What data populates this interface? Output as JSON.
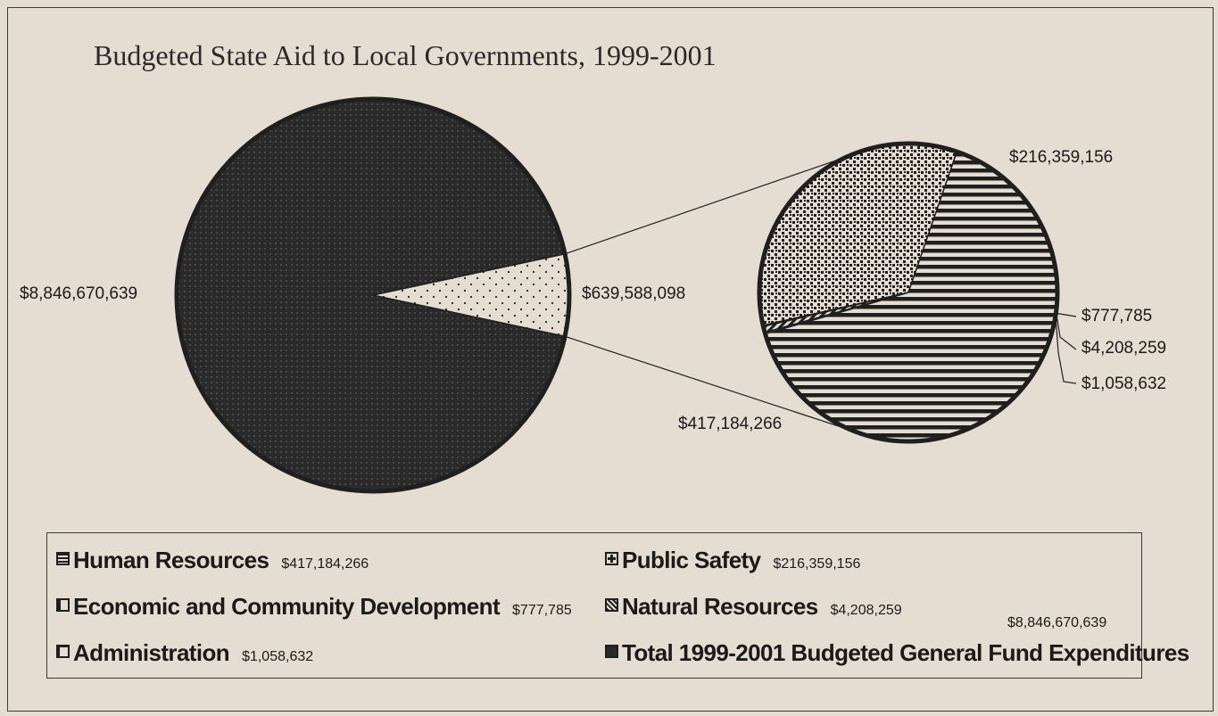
{
  "page": {
    "title": "Budgeted State Aid to Local Governments, 1999-2001"
  },
  "chart_data": [
    {
      "type": "pie",
      "title": "Budgeted State Aid to Local Governments, 1999-2001",
      "slices": [
        {
          "label": "Total 1999-2001 Budgeted General Fund Expenditures",
          "value": 8846670639,
          "display": "$8,846,670,639",
          "pattern": "dark-dotted"
        },
        {
          "label": "Budgeted State Aid to Local Governments",
          "value": 639588098,
          "display": "$639,588,098",
          "pattern": "light-dotted",
          "exploded_to": "breakdown"
        }
      ]
    },
    {
      "type": "pie",
      "slices": [
        {
          "label": "Public Safety",
          "value": 216359156,
          "display": "$216,359,156",
          "pattern": "checker"
        },
        {
          "label": "Economic and Community Development",
          "value": 777785,
          "display": "$777,785",
          "pattern": "white"
        },
        {
          "label": "Natural Resources",
          "value": 4208259,
          "display": "$4,208,259",
          "pattern": "diagonal"
        },
        {
          "label": "Administration",
          "value": 1058632,
          "display": "$1,058,632",
          "pattern": "white"
        },
        {
          "label": "Human Resources",
          "value": 417184266,
          "display": "$417,184,266",
          "pattern": "horizontal-stripes"
        }
      ]
    }
  ],
  "callouts": {
    "total": "$8,846,670,639",
    "aid": "$639,588,098",
    "public_safety": "$216,359,156",
    "econ": "$777,785",
    "natural": "$4,208,259",
    "admin": "$1,058,632",
    "human": "$417,184,266"
  },
  "legend": [
    {
      "key": "human",
      "label": "Human Resources",
      "value": "$417,184,266"
    },
    {
      "key": "public",
      "label": "Public Safety",
      "value": "$216,359,156"
    },
    {
      "key": "econ",
      "label": "Economic and Community Development",
      "value": "$777,785"
    },
    {
      "key": "natural",
      "label": "Natural Resources",
      "value": "$4,208,259"
    },
    {
      "key": "admin",
      "label": "Administration",
      "value": "$1,058,632"
    },
    {
      "key": "total",
      "label": "Total 1999-2001 Budgeted General Fund Expenditures",
      "value": "$8,846,670,639"
    }
  ],
  "colors": {
    "paper": "#e6ddd2",
    "ink": "#1f1f1f",
    "dark_fill": "#2a2a2a"
  }
}
